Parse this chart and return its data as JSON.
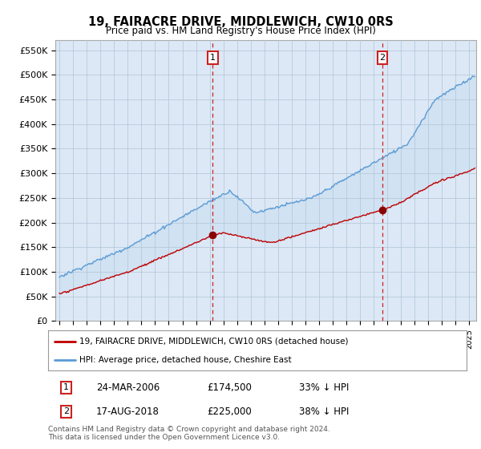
{
  "title": "19, FAIRACRE DRIVE, MIDDLEWICH, CW10 0RS",
  "subtitle": "Price paid vs. HM Land Registry's House Price Index (HPI)",
  "ylabel_ticks": [
    "£0",
    "£50K",
    "£100K",
    "£150K",
    "£200K",
    "£250K",
    "£300K",
    "£350K",
    "£400K",
    "£450K",
    "£500K",
    "£550K"
  ],
  "ytick_values": [
    0,
    50000,
    100000,
    150000,
    200000,
    250000,
    300000,
    350000,
    400000,
    450000,
    500000,
    550000
  ],
  "ylim": [
    0,
    570000
  ],
  "xlim_start": 1994.7,
  "xlim_end": 2025.5,
  "sale1": {
    "date_x": 2006.22,
    "price": 174500,
    "label": "1"
  },
  "sale2": {
    "date_x": 2018.63,
    "price": 225000,
    "label": "2"
  },
  "legend_line1": "19, FAIRACRE DRIVE, MIDDLEWICH, CW10 0RS (detached house)",
  "legend_line2": "HPI: Average price, detached house, Cheshire East",
  "table_row1": [
    "1",
    "24-MAR-2006",
    "£174,500",
    "33% ↓ HPI"
  ],
  "table_row2": [
    "2",
    "17-AUG-2018",
    "£225,000",
    "38% ↓ HPI"
  ],
  "footer": "Contains HM Land Registry data © Crown copyright and database right 2024.\nThis data is licensed under the Open Government Licence v3.0.",
  "hpi_color": "#5b9bd5",
  "price_color": "#c00000",
  "sale_marker_color": "#8b0000",
  "bg_color": "#dce8f5",
  "grid_color": "#b0c4d8",
  "vline_color": "#cc2222"
}
